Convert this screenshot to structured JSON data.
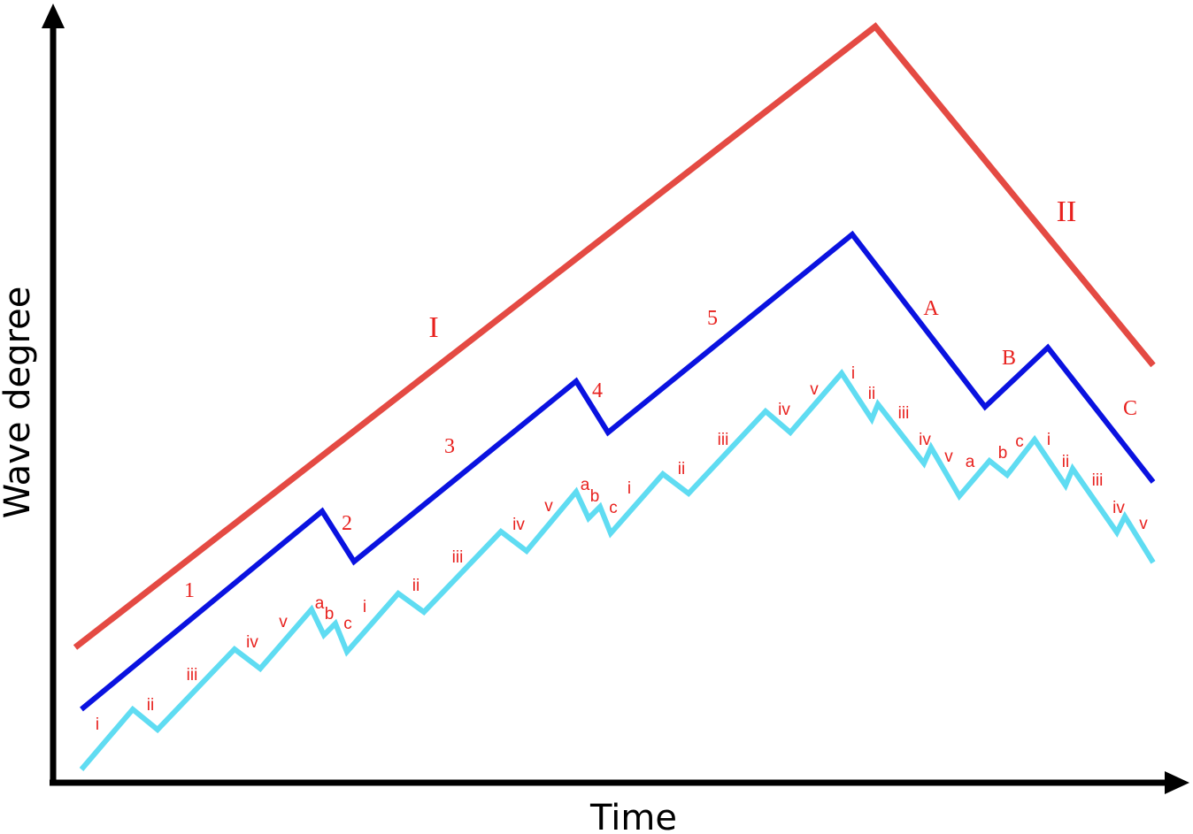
{
  "axes": {
    "x_label": "Time",
    "y_label": "Wave degree"
  },
  "colors": {
    "primary": "#e44a43",
    "intermediate": "#0a12e0",
    "minor": "#5fdcf2",
    "label": "#e8211e",
    "axis": "#000000"
  },
  "primary_labels": [
    "I",
    "II"
  ],
  "intermediate_labels": [
    "1",
    "2",
    "3",
    "4",
    "5",
    "A",
    "B",
    "C"
  ],
  "minor_labels": [
    "i",
    "ii",
    "iii",
    "iv",
    "v",
    "a",
    "b",
    "c",
    "i",
    "ii",
    "iii",
    "iv",
    "v",
    "a",
    "b",
    "c",
    "i",
    "ii",
    "iii",
    "iv",
    "v",
    "i",
    "ii",
    "iii",
    "iv",
    "v",
    "a",
    "b",
    "c",
    "i",
    "ii",
    "iii",
    "iv",
    "v"
  ]
}
